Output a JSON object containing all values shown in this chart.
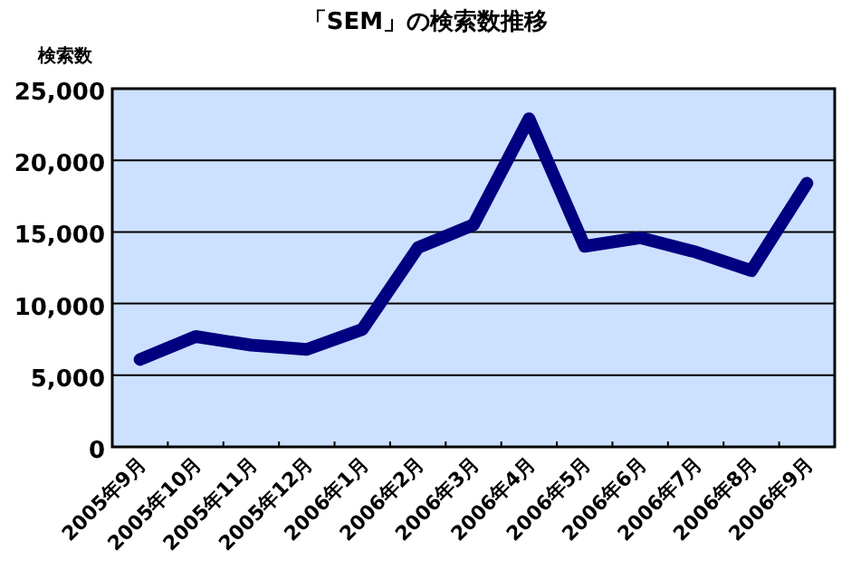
{
  "chart_data": {
    "type": "line",
    "title": "「SEM」の検索数推移",
    "ylabel": "検索数",
    "categories": [
      "2005年9月",
      "2005年10月",
      "2005年11月",
      "2005年12月",
      "2006年1月",
      "2006年2月",
      "2006年3月",
      "2006年4月",
      "2006年5月",
      "2006年6月",
      "2006年7月",
      "2006年8月",
      "2006年9月"
    ],
    "series": [
      {
        "color": "#000080",
        "values": [
          6100,
          7700,
          7100,
          6800,
          8200,
          13900,
          15500,
          22900,
          14000,
          14600,
          13600,
          12300,
          18400
        ]
      }
    ],
    "ylim": [
      0,
      25000
    ],
    "yticks": [
      {
        "value": 0,
        "label": "0"
      },
      {
        "value": 5000,
        "label": "5,000"
      },
      {
        "value": 10000,
        "label": "10,000"
      },
      {
        "value": 15000,
        "label": "15,000"
      },
      {
        "value": 20000,
        "label": "20,000"
      },
      {
        "value": 25000,
        "label": "25,000"
      }
    ],
    "grid": "y",
    "marker": "none",
    "line_style": "solid"
  }
}
